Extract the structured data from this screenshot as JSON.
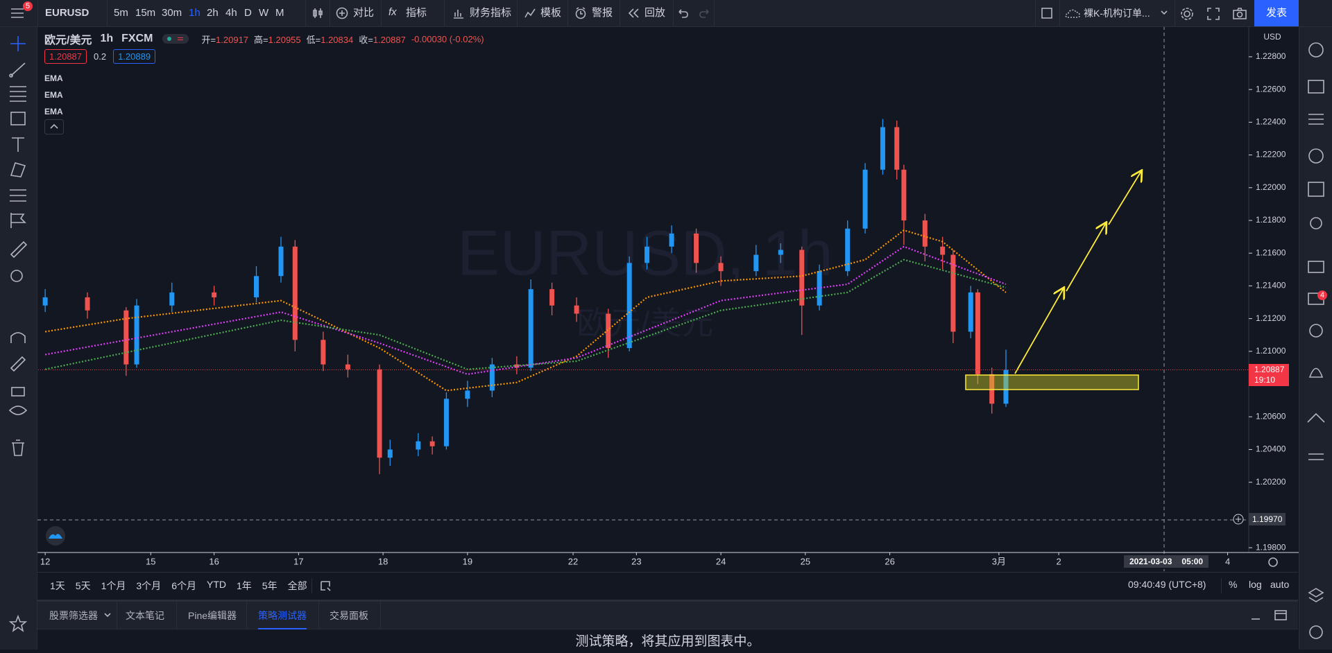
{
  "toolbar": {
    "symbol": "EURUSD",
    "notification_badge": "5",
    "intervals": [
      "5m",
      "15m",
      "30m",
      "1h",
      "2h",
      "4h",
      "D",
      "W",
      "M"
    ],
    "buttons": [
      "对比",
      "指标",
      "财务指标",
      "模板",
      "警报",
      "回放"
    ],
    "layout_name": "裸K-机构订单...",
    "publish": "发表"
  },
  "legend": {
    "symbol_name": "欧元/美元",
    "interval": "1h",
    "exchange": "FXCM",
    "ohlc": [
      {
        "label": "开=",
        "value": "1.20917"
      },
      {
        "label": "高=",
        "value": "1.20955"
      },
      {
        "label": "低=",
        "value": "1.20834"
      },
      {
        "label": "收=",
        "value": "1.20887"
      }
    ],
    "change": "-0.00030 (-0.02%)",
    "bid": "1.20887",
    "spread": "0.2",
    "ask": "1.20889"
  },
  "watermark": {
    "symbol": "EURUSD, 1h",
    "name": "欧元/美元"
  },
  "chart_data": {
    "type": "candlestick",
    "currency": "USD",
    "up_color": "#2196f3",
    "down_color": "#ef5350",
    "ohlc": {
      "x": [
        0,
        12,
        23,
        26,
        36,
        48,
        60,
        67,
        71,
        79,
        86,
        95,
        98,
        106,
        110,
        114,
        120,
        127,
        134,
        138,
        144,
        151,
        160,
        166,
        171,
        178,
        185,
        192,
        202,
        209,
        215,
        220,
        228,
        233,
        238,
        242,
        244,
        250,
        255,
        258,
        263,
        265,
        269,
        273
      ],
      "open": [
        1.2128,
        1.2133,
        1.2125,
        1.2092,
        1.2128,
        1.2136,
        1.2133,
        1.2146,
        1.2164,
        1.2107,
        1.2092,
        1.2089,
        1.2035,
        1.204,
        1.2045,
        1.2042,
        1.2071,
        1.2076,
        1.2092,
        1.209,
        1.2138,
        1.2128,
        1.2123,
        1.2102,
        1.2154,
        1.2164,
        1.2172,
        1.2154,
        1.2149,
        1.2159,
        1.2162,
        1.2128,
        1.2149,
        1.2175,
        1.2211,
        1.2237,
        1.2211,
        1.218,
        1.2164,
        1.2159,
        1.2112,
        1.2136,
        1.2086,
        1.2068
      ],
      "high": [
        1.2138,
        1.2136,
        1.2127,
        1.2132,
        1.2142,
        1.214,
        1.2152,
        1.217,
        1.2168,
        1.2112,
        1.2098,
        1.2092,
        1.2046,
        1.205,
        1.2048,
        1.2075,
        1.2082,
        1.2096,
        1.2097,
        1.2144,
        1.2142,
        1.2133,
        1.2126,
        1.2158,
        1.217,
        1.2177,
        1.2175,
        1.2158,
        1.2165,
        1.2166,
        1.2164,
        1.2153,
        1.218,
        1.2215,
        1.2242,
        1.2241,
        1.2214,
        1.2184,
        1.217,
        1.2162,
        1.214,
        1.2138,
        1.209,
        1.2101
      ],
      "low": [
        1.2124,
        1.212,
        1.2085,
        1.209,
        1.2124,
        1.2128,
        1.213,
        1.2142,
        1.21,
        1.2088,
        1.2084,
        1.2025,
        1.203,
        1.2036,
        1.2037,
        1.204,
        1.2066,
        1.2072,
        1.2086,
        1.2088,
        1.2122,
        1.2118,
        1.2096,
        1.21,
        1.215,
        1.216,
        1.2148,
        1.214,
        1.2146,
        1.2154,
        1.211,
        1.2125,
        1.2146,
        1.2172,
        1.2208,
        1.2205,
        1.2165,
        1.2155,
        1.215,
        1.2105,
        1.2108,
        1.208,
        1.2062,
        1.2066
      ],
      "close": [
        1.2133,
        1.2125,
        1.2092,
        1.2128,
        1.2136,
        1.2133,
        1.2146,
        1.2164,
        1.2107,
        1.2092,
        1.2089,
        1.2035,
        1.204,
        1.2045,
        1.2042,
        1.2071,
        1.2076,
        1.2092,
        1.209,
        1.2138,
        1.2128,
        1.2123,
        1.2102,
        1.2154,
        1.2164,
        1.2172,
        1.2154,
        1.2149,
        1.2159,
        1.2162,
        1.2128,
        1.2149,
        1.2175,
        1.2211,
        1.2237,
        1.2211,
        1.218,
        1.2164,
        1.2159,
        1.2112,
        1.2136,
        1.2086,
        1.2068,
        1.20887
      ]
    },
    "series": [
      {
        "name": "EMA",
        "color": "#ff9800",
        "x": [
          0,
          23,
          67,
          95,
          114,
          134,
          151,
          171,
          192,
          215,
          233,
          244,
          255,
          273
        ],
        "values": [
          1.2112,
          1.212,
          1.2131,
          1.2102,
          1.2076,
          1.2081,
          1.2097,
          1.2133,
          1.2143,
          1.2146,
          1.2156,
          1.2174,
          1.2167,
          1.2136
        ]
      },
      {
        "name": "EMA",
        "color": "#e040fb",
        "x": [
          0,
          67,
          95,
          120,
          151,
          192,
          228,
          244,
          273
        ],
        "values": [
          1.2098,
          1.2124,
          1.2105,
          1.2086,
          1.2096,
          1.2131,
          1.2141,
          1.2164,
          1.2141
        ]
      },
      {
        "name": "EMA",
        "color": "#4caf50",
        "x": [
          0,
          67,
          95,
          120,
          151,
          192,
          228,
          244,
          273
        ],
        "values": [
          1.2089,
          1.2119,
          1.211,
          1.2089,
          1.2094,
          1.2125,
          1.2136,
          1.2156,
          1.2139
        ]
      }
    ],
    "last_price": 1.20887,
    "countdown": "19:10",
    "xlim": [
      -2,
      342
    ],
    "ylim": [
      1.19775,
      1.22986
    ],
    "xticks": [
      {
        "value": 0,
        "label": "12"
      },
      {
        "value": 30,
        "label": "15"
      },
      {
        "value": 48,
        "label": "16"
      },
      {
        "value": 72,
        "label": "17"
      },
      {
        "value": 96,
        "label": "18"
      },
      {
        "value": 120,
        "label": "19"
      },
      {
        "value": 150,
        "label": "22"
      },
      {
        "value": 168,
        "label": "23"
      },
      {
        "value": 192,
        "label": "24"
      },
      {
        "value": 216,
        "label": "25"
      },
      {
        "value": 240,
        "label": "26"
      },
      {
        "value": 271,
        "label": "3月"
      },
      {
        "value": 288,
        "label": "2"
      },
      {
        "value": 336,
        "label": "4"
      }
    ],
    "yticks": [
      {
        "value": 1.228,
        "label": "1.22800"
      },
      {
        "value": 1.226,
        "label": "1.22600"
      },
      {
        "value": 1.224,
        "label": "1.22400"
      },
      {
        "value": 1.222,
        "label": "1.22200"
      },
      {
        "value": 1.22,
        "label": "1.22000"
      },
      {
        "value": 1.218,
        "label": "1.21800"
      },
      {
        "value": 1.216,
        "label": "1.21600"
      },
      {
        "value": 1.214,
        "label": "1.21400"
      },
      {
        "value": 1.212,
        "label": "1.21200"
      },
      {
        "value": 1.21,
        "label": "1.21000"
      },
      {
        "value": 1.206,
        "label": "1.20600"
      },
      {
        "value": 1.204,
        "label": "1.20400"
      },
      {
        "value": 1.202,
        "label": "1.20200"
      },
      {
        "value": 1.198,
        "label": "1.19800"
      }
    ]
  },
  "crosshair": {
    "price": {
      "value": 1.1997,
      "label": "1.19970"
    },
    "date": "2021-03-03",
    "time": "05:00"
  },
  "range_bar": {
    "ranges": [
      "1天",
      "5天",
      "1个月",
      "3个月",
      "6个月",
      "YTD",
      "1年",
      "5年",
      "全部"
    ],
    "clock": "09:40:49 (UTC+8)",
    "options": [
      "%",
      "log",
      "auto"
    ]
  },
  "panel": {
    "tabs": [
      "股票筛选器",
      "文本笔记",
      "Pine编辑器",
      "策略测试器",
      "交易面板"
    ],
    "message": "测试策略，将其应用到图表中。"
  },
  "sidebar": {
    "badge": "4"
  }
}
